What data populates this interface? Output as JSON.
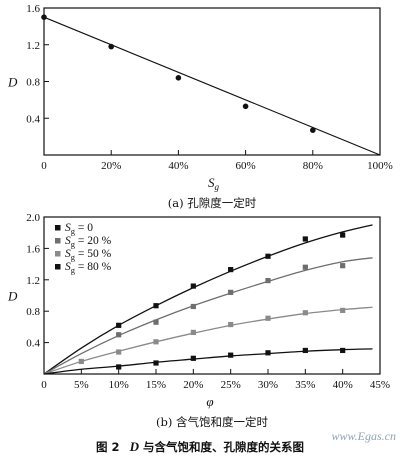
{
  "chart_data": [
    {
      "type": "scatter",
      "caption": "(a) 孔隙度一定时",
      "xlabel": "S",
      "xlabel_sub": "g",
      "ylabel": "D",
      "xlim": [
        0,
        100
      ],
      "ylim": [
        0,
        1.6
      ],
      "x_ticks": [
        0,
        20,
        40,
        60,
        80,
        100
      ],
      "x_tick_labels": [
        "0",
        "20%",
        "40%",
        "60%",
        "80%",
        "100%"
      ],
      "y_ticks": [
        0.4,
        0.8,
        1.2,
        1.6
      ],
      "y_tick_labels": [
        "0.4",
        "0.8",
        "1.2",
        "1.6"
      ],
      "grid": false,
      "series": [
        {
          "x": [
            0,
            20,
            40,
            60,
            80
          ],
          "y": [
            1.5,
            1.18,
            0.84,
            0.53,
            0.27
          ],
          "fit": {
            "type": "linear",
            "from": [
              0,
              1.5
            ],
            "to": [
              100,
              0
            ]
          }
        }
      ]
    },
    {
      "type": "scatter",
      "caption": "(b) 含气饱和度一定时",
      "xlabel": "φ",
      "ylabel": "D",
      "xlim": [
        0,
        45
      ],
      "ylim": [
        0,
        2.0
      ],
      "x_ticks": [
        0,
        5,
        10,
        15,
        20,
        25,
        30,
        35,
        40,
        45
      ],
      "x_tick_labels": [
        "0",
        "5%",
        "10%",
        "15%",
        "20%",
        "25%",
        "30%",
        "35%",
        "40%",
        "45%"
      ],
      "y_ticks": [
        0.4,
        0.8,
        1.2,
        1.6,
        2.0
      ],
      "y_tick_labels": [
        "0.4",
        "0.8",
        "1.2",
        "1.6",
        "2.0"
      ],
      "grid": false,
      "legend_position": "top-left",
      "series": [
        {
          "name_prefix": "S",
          "name_sub": "g",
          "name_suffix": " = 0",
          "color": "#111111",
          "x": [
            10,
            15,
            20,
            25,
            30,
            35,
            40
          ],
          "y": [
            0.62,
            0.87,
            1.12,
            1.33,
            1.5,
            1.72,
            1.77
          ],
          "curve": [
            [
              0,
              0
            ],
            [
              5,
              0.33
            ],
            [
              10,
              0.62
            ],
            [
              15,
              0.87
            ],
            [
              20,
              1.1
            ],
            [
              25,
              1.31
            ],
            [
              30,
              1.5
            ],
            [
              35,
              1.67
            ],
            [
              40,
              1.81
            ],
            [
              44,
              1.9
            ]
          ]
        },
        {
          "name_prefix": "S",
          "name_sub": "g",
          "name_suffix": " = 20 %",
          "color": "#6e6e6e",
          "x": [
            10,
            15,
            20,
            25,
            30,
            35,
            40
          ],
          "y": [
            0.5,
            0.66,
            0.86,
            1.04,
            1.19,
            1.36,
            1.38
          ],
          "curve": [
            [
              0,
              0
            ],
            [
              5,
              0.26
            ],
            [
              10,
              0.49
            ],
            [
              15,
              0.69
            ],
            [
              20,
              0.87
            ],
            [
              25,
              1.03
            ],
            [
              30,
              1.18
            ],
            [
              35,
              1.32
            ],
            [
              40,
              1.43
            ],
            [
              44,
              1.48
            ]
          ]
        },
        {
          "name_prefix": "S",
          "name_sub": "g",
          "name_suffix": " = 50 %",
          "color": "#8a8a8a",
          "x": [
            5,
            10,
            15,
            20,
            25,
            30,
            35,
            40
          ],
          "y": [
            0.16,
            0.28,
            0.41,
            0.53,
            0.63,
            0.71,
            0.78,
            0.81
          ],
          "curve": [
            [
              0,
              0
            ],
            [
              5,
              0.16
            ],
            [
              10,
              0.29
            ],
            [
              15,
              0.41
            ],
            [
              20,
              0.52
            ],
            [
              25,
              0.62
            ],
            [
              30,
              0.7
            ],
            [
              35,
              0.77
            ],
            [
              40,
              0.82
            ],
            [
              44,
              0.85
            ]
          ]
        },
        {
          "name_prefix": "S",
          "name_sub": "g",
          "name_suffix": " = 80 %",
          "color": "#111111",
          "x": [
            10,
            15,
            20,
            25,
            30,
            35,
            40
          ],
          "y": [
            0.09,
            0.14,
            0.2,
            0.24,
            0.27,
            0.3,
            0.3
          ],
          "curve": [
            [
              0,
              0
            ],
            [
              5,
              0.06
            ],
            [
              10,
              0.1
            ],
            [
              15,
              0.15
            ],
            [
              20,
              0.19
            ],
            [
              25,
              0.23
            ],
            [
              30,
              0.26
            ],
            [
              35,
              0.29
            ],
            [
              40,
              0.31
            ],
            [
              44,
              0.32
            ]
          ]
        }
      ]
    }
  ],
  "figure_caption": {
    "prefix": "图 2",
    "symbol": "D",
    "text": "与含气饱和度、孔隙度的关系图"
  },
  "watermark": "www.Egas.cn"
}
